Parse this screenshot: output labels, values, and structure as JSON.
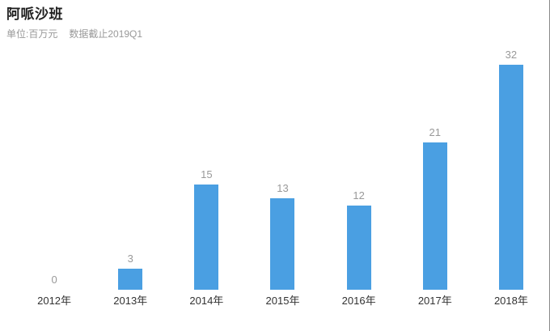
{
  "header": {
    "title": "阿哌沙班",
    "unit_label": "单位:百万元",
    "cutoff_label": "数据截止2019Q1"
  },
  "colors": {
    "bar": "#4a9fe2",
    "value_label": "#999999",
    "axis_label": "#333333",
    "title": "#1f1f1f",
    "subtitle": "#999999",
    "right_border": "#8a8a8a"
  },
  "chart_data": {
    "type": "bar",
    "title": "阿哌沙班",
    "subtitle": "单位:百万元  数据截止2019Q1",
    "categories": [
      "2012年",
      "2013年",
      "2014年",
      "2015年",
      "2016年",
      "2017年",
      "2018年"
    ],
    "values": [
      0,
      3,
      15,
      13,
      12,
      21,
      32
    ],
    "xlabel": "",
    "ylabel": "百万元",
    "ylim": [
      0,
      32
    ],
    "grid": false,
    "legend": "none",
    "axes_shown": false,
    "value_labels_shown": true,
    "bar_color": "#4a9fe2"
  }
}
